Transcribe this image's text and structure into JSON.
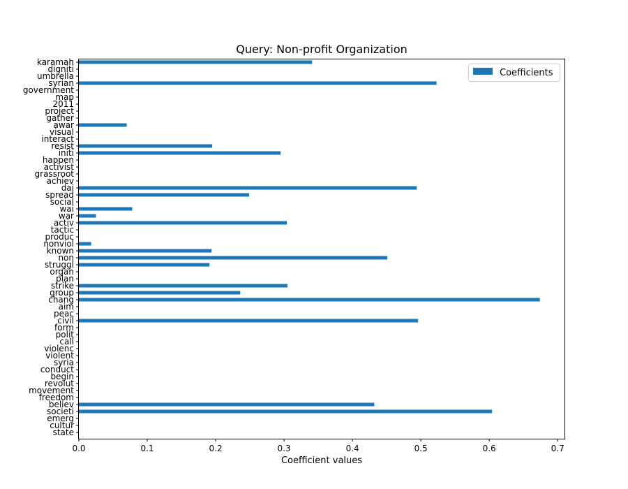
{
  "chart_data": {
    "type": "bar",
    "orientation": "horizontal",
    "title": "Query: Non-profit Organization",
    "xlabel": "Coefficient values",
    "ylabel": "",
    "xlim": [
      0,
      0.71
    ],
    "xticks": [
      "0.0",
      "0.1",
      "0.2",
      "0.3",
      "0.4",
      "0.5",
      "0.6",
      "0.7"
    ],
    "legend": {
      "position": "top-right",
      "entries": [
        "Coefficients"
      ]
    },
    "bar_color": "#1f77b4",
    "grid": false,
    "categories": [
      "state",
      "cultur",
      "emerg",
      "societi",
      "believ",
      "freedom",
      "movement",
      "revolut",
      "begin",
      "conduct",
      "syria",
      "violent",
      "violenc",
      "call",
      "polit",
      "form",
      "civil",
      "peac",
      "aim",
      "chang",
      "group",
      "strike",
      "plan",
      "organ",
      "struggl",
      "non",
      "known",
      "nonviol",
      "produc",
      "tactic",
      "activ",
      "war",
      "wai",
      "social",
      "spread",
      "dai",
      "achiev",
      "grassroot",
      "activist",
      "happen",
      "initi",
      "resist",
      "interact",
      "visual",
      "awar",
      "gather",
      "project",
      "2011",
      "map",
      "government",
      "syrian",
      "umbrella",
      "digniti",
      "karamah"
    ],
    "series": [
      {
        "name": "Coefficients",
        "values": [
          0,
          0,
          0,
          0.604,
          0.432,
          0,
          0,
          0,
          0,
          0,
          0,
          0,
          0,
          0,
          0,
          0,
          0.496,
          0,
          0,
          0.674,
          0.236,
          0.305,
          0,
          0,
          0.191,
          0.451,
          0.194,
          0.018,
          0,
          0,
          0.304,
          0.025,
          0.078,
          0,
          0.249,
          0.494,
          0,
          0,
          0,
          0,
          0.295,
          0.195,
          0,
          0,
          0.07,
          0,
          0,
          0,
          0,
          0,
          0.523,
          0,
          0,
          0.341
        ]
      }
    ]
  }
}
